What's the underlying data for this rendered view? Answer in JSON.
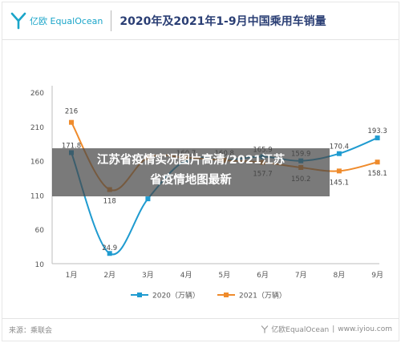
{
  "header": {
    "brand": "亿欧 EqualOcean",
    "title": "2020年及2021年1-9月中国乘用车销量"
  },
  "chart_data": {
    "type": "line",
    "categories": [
      "1月",
      "2月",
      "3月",
      "4月",
      "5月",
      "6月",
      "7月",
      "8月",
      "9月"
    ],
    "y_ticks": [
      "10",
      "60",
      "110",
      "160",
      "210",
      "260"
    ],
    "ylim": [
      10,
      260
    ],
    "grid": false,
    "legend_position": "bottom",
    "series": [
      {
        "name": "2020（万辆）",
        "color": "#1f9bd0",
        "values": [
          171.8,
          24.9,
          104.5,
          160.7,
          160.8,
          165.9,
          159.9,
          170.4,
          193.3
        ],
        "labels": [
          "171.8",
          "24.9",
          "",
          "160.7",
          "160.8",
          "165.9",
          "159.9",
          "170.4",
          "193.3"
        ]
      },
      {
        "name": "2021（万辆）",
        "color": "#ef8b2c",
        "values": [
          216,
          118,
          164.5,
          164.5,
          160.7,
          157.7,
          150.2,
          145.1,
          158.1
        ],
        "labels": [
          "216",
          "118",
          "",
          "",
          "",
          "157.7",
          "150.2",
          "145.1",
          "158.1"
        ]
      }
    ]
  },
  "overlay": {
    "line1": "江苏省疫情实况图片高清/2021江苏",
    "line2": "省疫情地图最新"
  },
  "footer": {
    "source": "来源：乘联会",
    "brand": "亿欧EqualOcean",
    "url": "www.iyiou.com"
  }
}
